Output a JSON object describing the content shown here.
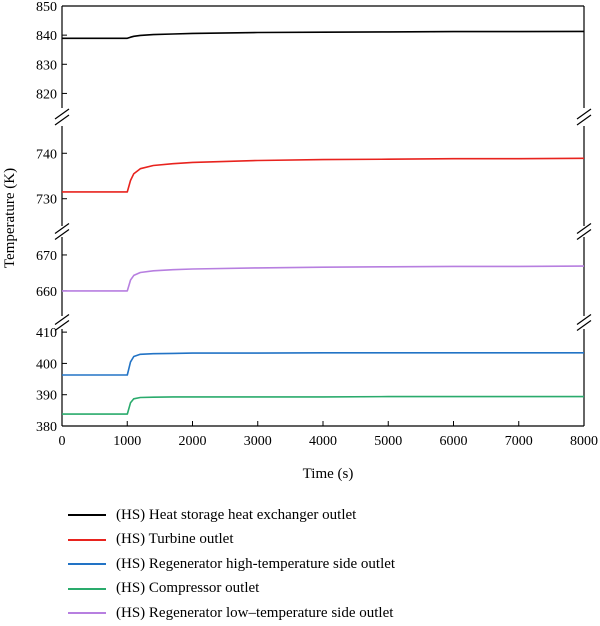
{
  "chart_data": {
    "type": "line",
    "xlabel": "Time (s)",
    "ylabel": "Temperature (K)",
    "xlim": [
      0,
      8000
    ],
    "x_ticks": [
      "0",
      "1000",
      "2000",
      "3000",
      "4000",
      "5000",
      "6000",
      "7000",
      "8000"
    ],
    "broken_y_axis": true,
    "y_segments": [
      {
        "range": [
          815,
          850
        ],
        "ticks": [
          "820",
          "830",
          "840",
          "850"
        ]
      },
      {
        "range": [
          724,
          746
        ],
        "ticks": [
          "730",
          "740"
        ]
      },
      {
        "range": [
          653,
          675
        ],
        "ticks": [
          "660",
          "670"
        ]
      },
      {
        "range": [
          380,
          411
        ],
        "ticks": [
          "380",
          "390",
          "400",
          "410"
        ]
      }
    ],
    "legend_position": "below",
    "series": [
      {
        "name": "(HS) Heat storage heat exchanger outlet",
        "color": "#000000",
        "x": [
          0,
          1000,
          1050,
          1100,
          1200,
          1400,
          1700,
          2000,
          3000,
          4000,
          5000,
          6000,
          7000,
          8000
        ],
        "y": [
          838.9,
          838.9,
          839.3,
          839.6,
          839.9,
          840.2,
          840.4,
          840.6,
          840.9,
          841.0,
          841.1,
          841.2,
          841.2,
          841.3
        ]
      },
      {
        "name": "(HS) Turbine outlet",
        "color": "#e8231e",
        "x": [
          0,
          1000,
          1050,
          1100,
          1200,
          1400,
          1700,
          2000,
          3000,
          4000,
          5000,
          6000,
          7000,
          8000
        ],
        "y": [
          731.5,
          731.5,
          734.0,
          735.5,
          736.6,
          737.3,
          737.7,
          738.0,
          738.4,
          738.6,
          738.7,
          738.8,
          738.8,
          738.9
        ]
      },
      {
        "name": "(HS) Regenerator high-temperature side outlet",
        "color": "#2273c5",
        "x": [
          0,
          1000,
          1050,
          1100,
          1200,
          1400,
          1700,
          2000,
          3000,
          4000,
          5000,
          6000,
          7000,
          8000
        ],
        "y": [
          396.3,
          396.3,
          400.5,
          402.2,
          402.9,
          403.1,
          403.2,
          403.3,
          403.3,
          403.4,
          403.4,
          403.4,
          403.4,
          403.4
        ]
      },
      {
        "name": "(HS) Compressor outlet",
        "color": "#2aab6c",
        "x": [
          0,
          1000,
          1050,
          1100,
          1200,
          1400,
          1700,
          2000,
          3000,
          4000,
          5000,
          6000,
          7000,
          8000
        ],
        "y": [
          383.8,
          383.8,
          387.4,
          388.7,
          389.1,
          389.2,
          389.3,
          389.3,
          389.3,
          389.3,
          389.4,
          389.4,
          389.4,
          389.4
        ]
      },
      {
        "name": "(HS) Regenerator low–temperature side outlet",
        "color": "#b77fe0",
        "x": [
          0,
          1000,
          1050,
          1100,
          1200,
          1400,
          1700,
          2000,
          3000,
          4000,
          5000,
          6000,
          7000,
          8000
        ],
        "y": [
          660.0,
          660.0,
          663.0,
          664.3,
          665.1,
          665.6,
          665.9,
          666.1,
          666.4,
          666.6,
          666.7,
          666.8,
          666.8,
          666.9
        ]
      }
    ]
  }
}
